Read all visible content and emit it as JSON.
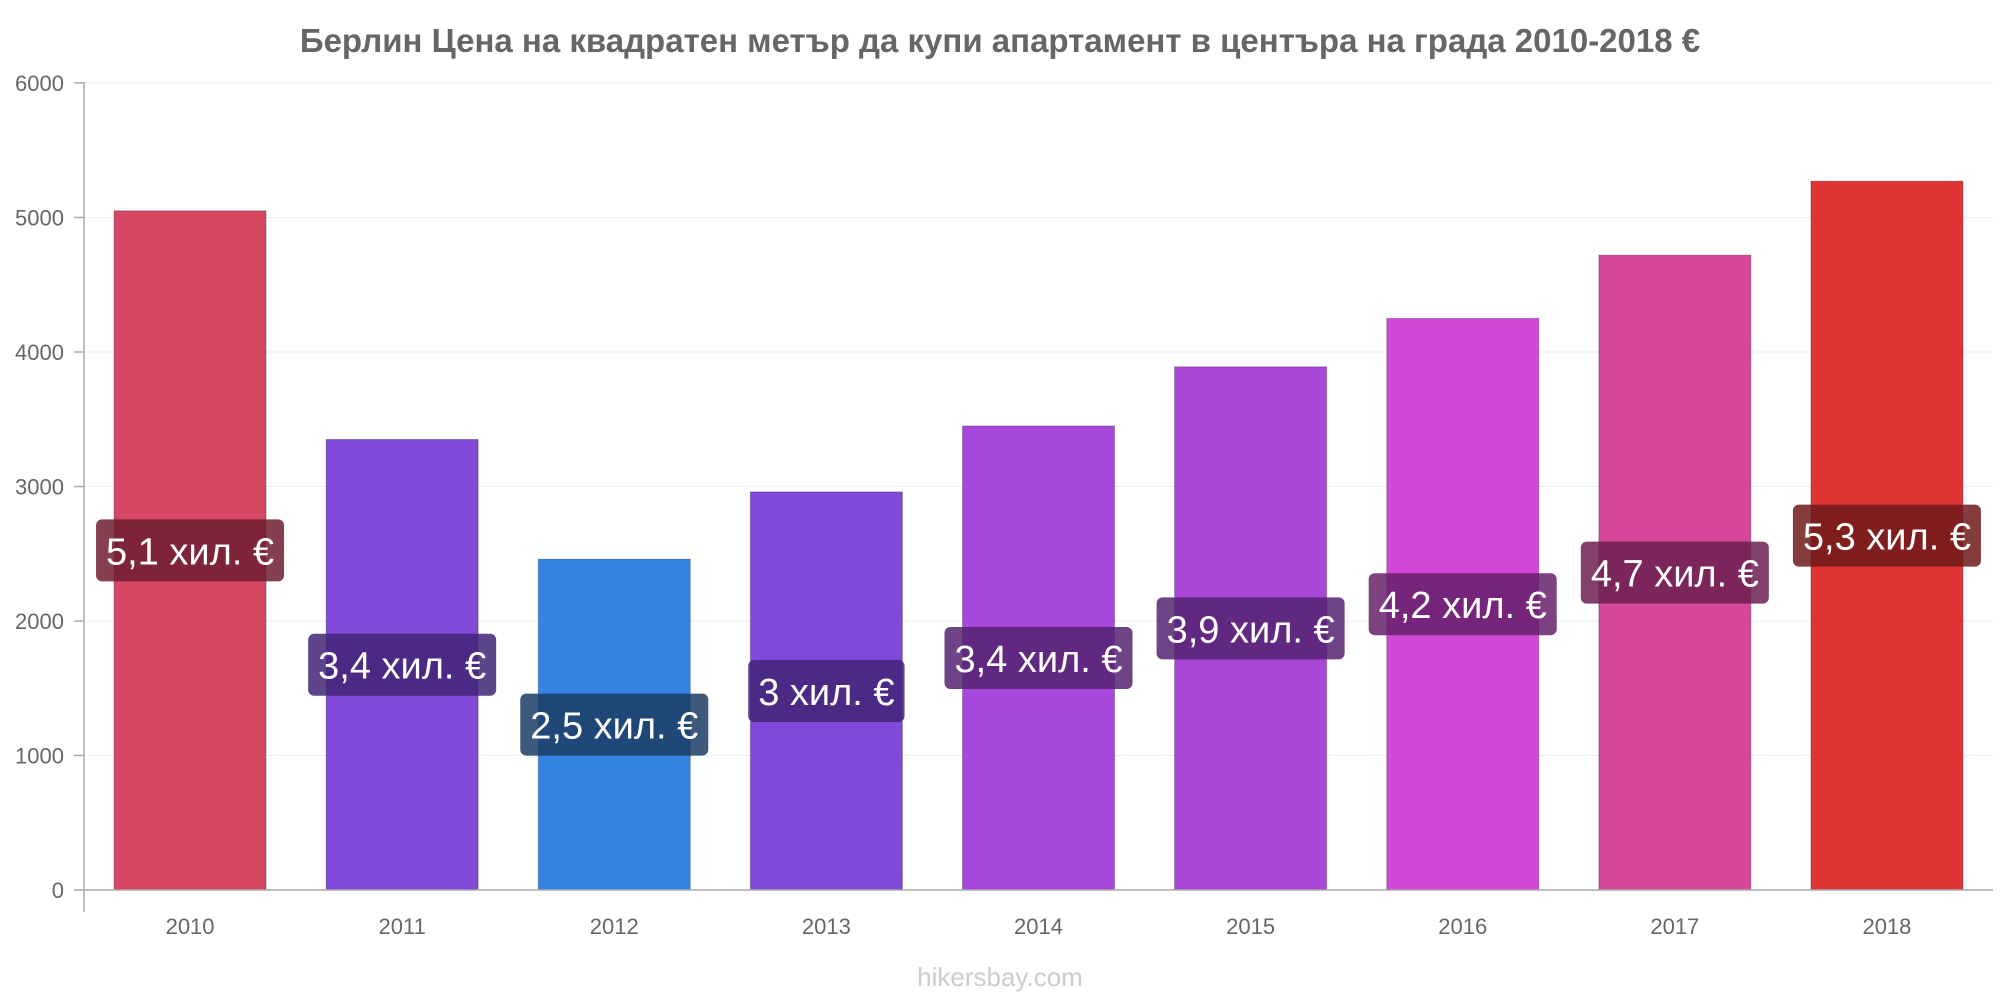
{
  "chart_data": {
    "type": "bar",
    "title": "Берлин Цена на квадратен метър да купи апартамент в центъра на града 2010-2018 €",
    "xlabel": "",
    "ylabel": "",
    "categories": [
      "2010",
      "2011",
      "2012",
      "2013",
      "2014",
      "2015",
      "2016",
      "2017",
      "2018"
    ],
    "values": [
      5050,
      3350,
      2460,
      2960,
      3450,
      3890,
      4250,
      4720,
      5270
    ],
    "data_labels": [
      "5,1 хил. €",
      "3,4 хил. €",
      "2,5 хил. €",
      "3 хил. €",
      "3,4 хил. €",
      "3,9 хил. €",
      "4,2 хил. €",
      "4,7 хил. €",
      "5,3 хил. €"
    ],
    "colors": [
      "#d64763",
      "#8049d9",
      "#3584e3",
      "#8049d9",
      "#a847db",
      "#aa47d9",
      "#d148d6",
      "#d64799",
      "#e03434"
    ],
    "label_bg_colors": [
      "#6e1f30",
      "#412474",
      "#1b3d66",
      "#412474",
      "#552371",
      "#552371",
      "#66216a",
      "#6c2050",
      "#6f1a1a"
    ],
    "ylim": [
      0,
      6000
    ],
    "yticks": [
      0,
      1000,
      2000,
      3000,
      4000,
      5000,
      6000
    ],
    "grid": true,
    "legend": "none"
  },
  "footer": "hikersbay.com"
}
